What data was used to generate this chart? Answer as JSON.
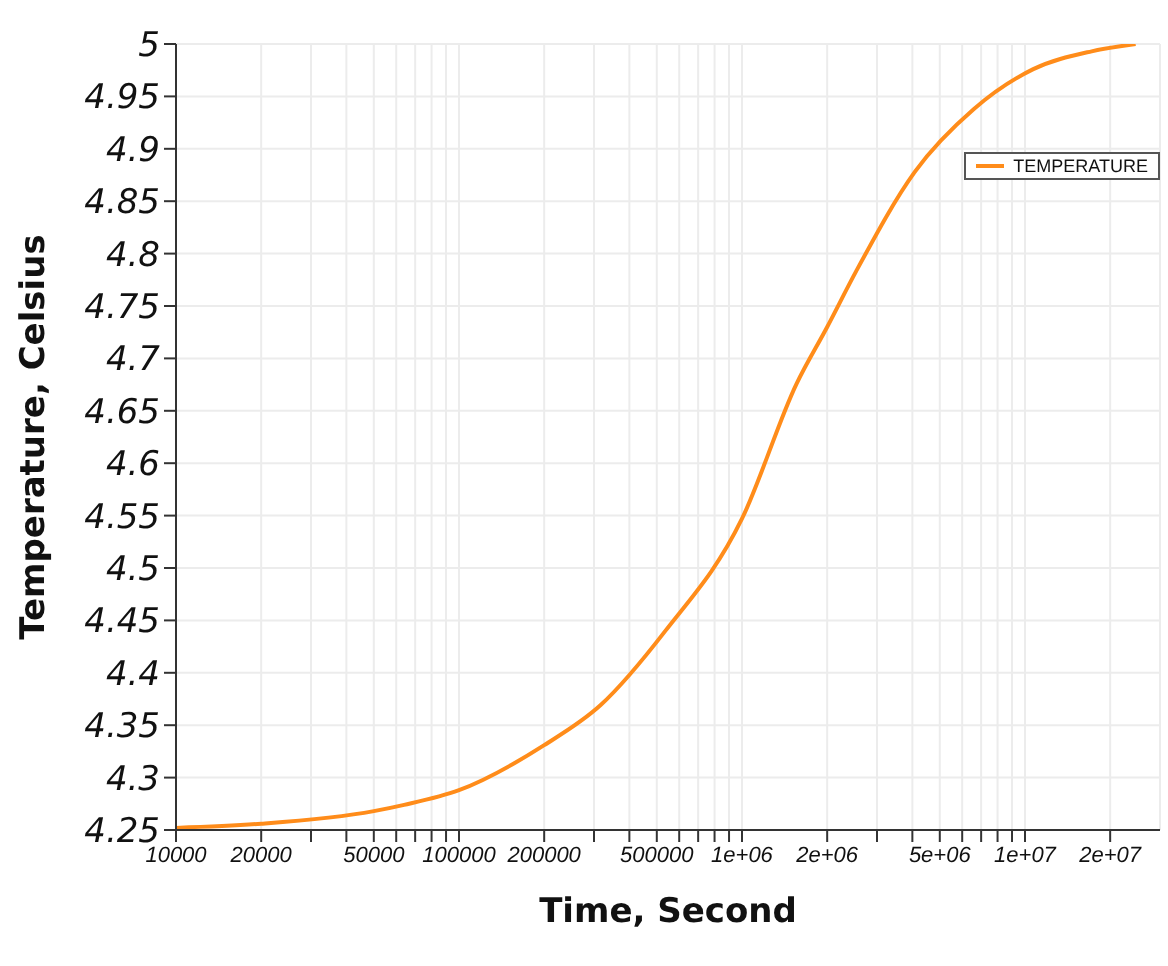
{
  "chart_data": {
    "type": "line",
    "xlabel": "Time, Second",
    "ylabel": "Temperature, Celsius",
    "x": [
      10000,
      20000,
      50000,
      64000,
      100000,
      200000,
      316000,
      536000,
      1000000,
      1560000,
      2000000,
      2530000,
      4080000,
      6600000,
      10700000,
      17200000,
      24600000
    ],
    "series": [
      {
        "name": "TEMPERATURE",
        "color": "#ff8c1a",
        "values": [
          4.252,
          4.256,
          4.268,
          4.274,
          4.288,
          4.331,
          4.369,
          4.44,
          4.547,
          4.676,
          4.73,
          4.783,
          4.878,
          4.938,
          4.976,
          4.993,
          5.0
        ]
      }
    ],
    "log": "x",
    "xlim": [
      10000,
      30000000
    ],
    "xticks": [
      10000,
      20000,
      {
        "value": 30000,
        "label": null
      },
      {
        "value": 40000,
        "label": null
      },
      50000,
      {
        "value": 60000,
        "label": null
      },
      {
        "value": 70000,
        "label": null
      },
      {
        "value": 80000,
        "label": null
      },
      {
        "value": 90000,
        "label": null
      },
      100000,
      200000,
      {
        "value": 300000,
        "label": null
      },
      {
        "value": 400000,
        "label": null
      },
      500000,
      {
        "value": 600000,
        "label": null
      },
      {
        "value": 700000,
        "label": null
      },
      {
        "value": 800000,
        "label": null
      },
      {
        "value": 900000,
        "label": null
      },
      {
        "value": 1000000,
        "label": "1e+06"
      },
      {
        "value": 2000000,
        "label": "2e+06"
      },
      {
        "value": 3000000,
        "label": null
      },
      {
        "value": 4000000,
        "label": null
      },
      {
        "value": 5000000,
        "label": "5e+06"
      },
      {
        "value": 6000000,
        "label": null
      },
      {
        "value": 7000000,
        "label": null
      },
      {
        "value": 8000000,
        "label": null
      },
      {
        "value": 9000000,
        "label": null
      },
      {
        "value": 10000000,
        "label": "1e+07"
      },
      {
        "value": 20000000,
        "label": "2e+07"
      }
    ],
    "ylim": [
      4.25,
      5
    ],
    "yticks": [
      4.25,
      4.3,
      4.35,
      4.4,
      4.45,
      4.5,
      4.55,
      4.6,
      4.65,
      4.7,
      4.75,
      4.8,
      4.85,
      4.9,
      4.95,
      5
    ],
    "grid": true,
    "legend": "top right",
    "marker": "none",
    "line_style": "solid"
  }
}
